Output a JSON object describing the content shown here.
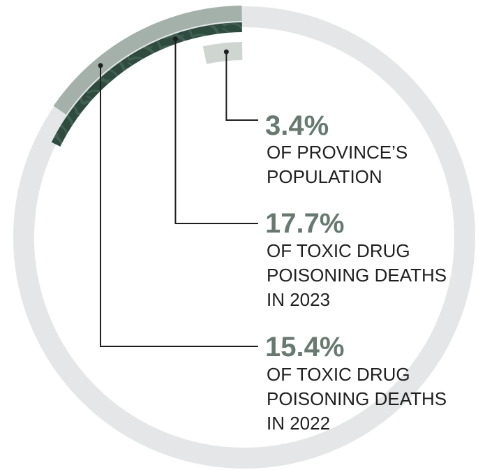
{
  "chart_data": {
    "type": "pie",
    "series": [
      {
        "value": 3.4,
        "percent_label": "3.4%",
        "description": [
          "OF PROVINCE’S",
          "POPULATION"
        ],
        "ring": "inner"
      },
      {
        "value": 17.7,
        "percent_label": "17.7%",
        "description": [
          "OF TOXIC DRUG",
          "POISONING DEATHS",
          "IN 2023"
        ],
        "ring": "middle"
      },
      {
        "value": 15.4,
        "percent_label": "15.4%",
        "description": [
          "OF TOXIC DRUG",
          "POISONING DEATHS",
          "IN 2022"
        ],
        "ring": "outer"
      }
    ]
  },
  "colors": {
    "track": "#e5e6e7",
    "inner_arc": "#cfd6d2",
    "middle_arc": "#2e4b40",
    "middle_arc_pattern": "#3e6152",
    "outer_arc": "#a4b1aa",
    "percent_text": "#667a70",
    "leader_line": "#1f1f1f"
  }
}
